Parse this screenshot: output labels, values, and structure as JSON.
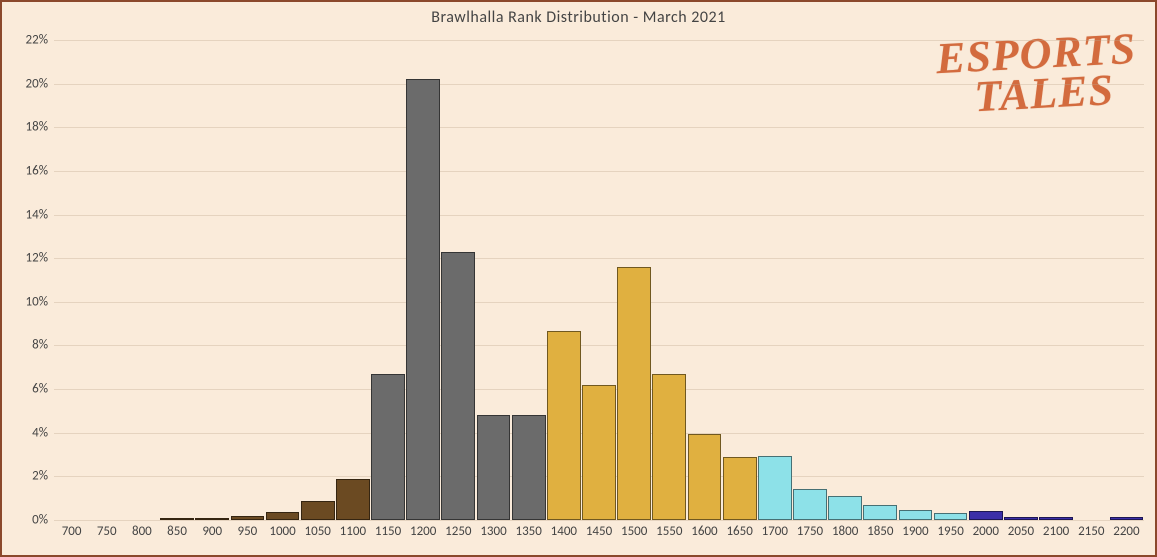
{
  "title": "Brawlhalla  Rank Distribution  - March 2021",
  "watermark": "ESPORTS\n TALES",
  "chart": {
    "type": "bar",
    "background_color": "#faebda",
    "border_color": "#8b482c",
    "grid_color": "#bca68c",
    "title_fontsize": 16,
    "axis_label_fontsize": 13,
    "ylim_min": 0,
    "ylim_max": 22,
    "ytick_step": 2,
    "y_suffix": "%",
    "bar_gap_ratio": 0.04,
    "categories": [
      "700",
      "750",
      "800",
      "850",
      "900",
      "950",
      "1000",
      "1050",
      "1100",
      "1150",
      "1200",
      "1250",
      "1300",
      "1350",
      "1400",
      "1450",
      "1500",
      "1550",
      "1600",
      "1650",
      "1700",
      "1750",
      "1800",
      "1850",
      "1900",
      "1950",
      "2000",
      "2050",
      "2100",
      "2150",
      "2200"
    ],
    "values": [
      0,
      0,
      0,
      0.1,
      0.1,
      0.2,
      0.38,
      0.85,
      1.9,
      6.7,
      20.2,
      12.3,
      4.8,
      4.8,
      8.65,
      6.2,
      11.6,
      6.7,
      3.95,
      2.9,
      2.95,
      1.4,
      1.1,
      0.7,
      0.45,
      0.3,
      0.4,
      0.12,
      0.12,
      0,
      0.12
    ],
    "bar_colors": [
      "#6b4a22",
      "#6b4a22",
      "#6b4a22",
      "#6b4a22",
      "#6b4a22",
      "#6b4a22",
      "#6b4a22",
      "#6b4a22",
      "#6b4a22",
      "#6b6b6b",
      "#6b6b6b",
      "#6b6b6b",
      "#6b6b6b",
      "#6b6b6b",
      "#e0b040",
      "#e0b040",
      "#e0b040",
      "#e0b040",
      "#e0b040",
      "#e0b040",
      "#8de1e8",
      "#8de1e8",
      "#8de1e8",
      "#8de1e8",
      "#8de1e8",
      "#8de1e8",
      "#3b2ea8",
      "#3b2ea8",
      "#3b2ea8",
      "#3b2ea8",
      "#3b2ea8"
    ]
  }
}
